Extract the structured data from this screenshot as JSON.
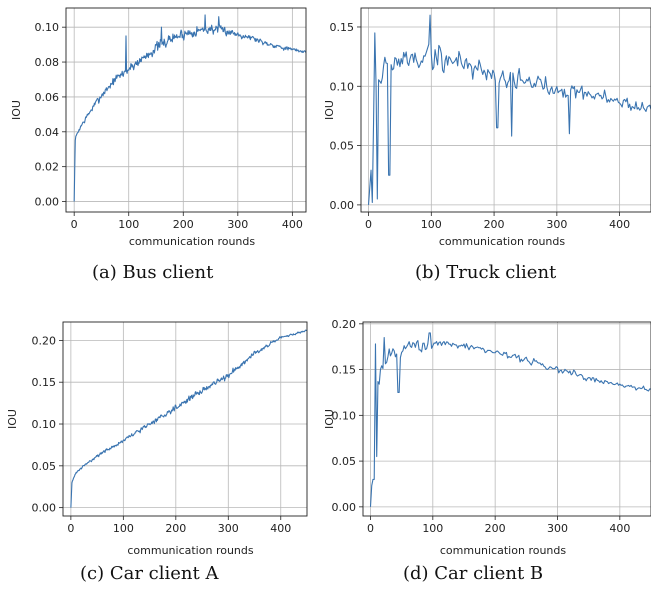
{
  "chart_data": [
    {
      "type": "line",
      "xlabel": "communication rounds",
      "ylabel": "IOU",
      "xlim": [
        -15,
        425
      ],
      "ylim": [
        -0.006,
        0.111
      ],
      "xticks": [
        "0",
        "100",
        "200",
        "300",
        "400"
      ],
      "yticks": [
        "0.00",
        "0.02",
        "0.04",
        "0.06",
        "0.08",
        "0.10"
      ],
      "grid": true,
      "caption": "(a) Bus client",
      "series_color": "#3a74b0",
      "shape": {
        "trend": [
          [
            0,
            0.0
          ],
          [
            2,
            0.036
          ],
          [
            10,
            0.042
          ],
          [
            30,
            0.052
          ],
          [
            50,
            0.061
          ],
          [
            75,
            0.07
          ],
          [
            100,
            0.076
          ],
          [
            125,
            0.082
          ],
          [
            150,
            0.088
          ],
          [
            175,
            0.093
          ],
          [
            200,
            0.096
          ],
          [
            225,
            0.098
          ],
          [
            250,
            0.099
          ],
          [
            275,
            0.098
          ],
          [
            300,
            0.096
          ],
          [
            325,
            0.094
          ],
          [
            350,
            0.091
          ],
          [
            375,
            0.089
          ],
          [
            400,
            0.087
          ],
          [
            425,
            0.086
          ]
        ],
        "noise": [
          [
            0,
            0.002
          ],
          [
            50,
            0.004
          ],
          [
            150,
            0.006
          ],
          [
            250,
            0.005
          ],
          [
            320,
            0.003
          ],
          [
            425,
            0.002
          ]
        ],
        "spikes": [
          [
            95,
            0.095
          ],
          [
            160,
            0.1
          ],
          [
            240,
            0.107
          ],
          [
            265,
            0.106
          ]
        ],
        "step": 1,
        "seed": 7
      }
    },
    {
      "type": "line",
      "xlabel": "communication rounds",
      "ylabel": "IOU",
      "xlim": [
        -12,
        450
      ],
      "ylim": [
        -0.006,
        0.166
      ],
      "xticks": [
        "0",
        "100",
        "200",
        "300",
        "400"
      ],
      "yticks": [
        "0.00",
        "0.05",
        "0.10",
        "0.15"
      ],
      "grid": true,
      "caption": "(b) Truck client",
      "series_color": "#3a74b0",
      "shape": {
        "trend": [
          [
            0,
            0.0
          ],
          [
            5,
            0.045
          ],
          [
            12,
            0.1
          ],
          [
            25,
            0.115
          ],
          [
            60,
            0.123
          ],
          [
            100,
            0.125
          ],
          [
            150,
            0.12
          ],
          [
            200,
            0.11
          ],
          [
            250,
            0.104
          ],
          [
            300,
            0.099
          ],
          [
            350,
            0.094
          ],
          [
            400,
            0.087
          ],
          [
            450,
            0.08
          ]
        ],
        "noise": [
          [
            0,
            0.015
          ],
          [
            30,
            0.025
          ],
          [
            120,
            0.022
          ],
          [
            200,
            0.018
          ],
          [
            300,
            0.014
          ],
          [
            400,
            0.011
          ],
          [
            450,
            0.009
          ]
        ],
        "spikes": [
          [
            6,
            0.002
          ],
          [
            10,
            0.145
          ],
          [
            14,
            0.005
          ],
          [
            33,
            0.025
          ],
          [
            98,
            0.16
          ],
          [
            205,
            0.065
          ],
          [
            228,
            0.058
          ],
          [
            320,
            0.06
          ]
        ],
        "step": 2,
        "seed": 19
      }
    },
    {
      "type": "line",
      "xlabel": "communication rounds",
      "ylabel": "IOU",
      "xlim": [
        -15,
        450
      ],
      "ylim": [
        -0.01,
        0.222
      ],
      "xticks": [
        "0",
        "100",
        "200",
        "300",
        "400"
      ],
      "yticks": [
        "0.00",
        "0.05",
        "0.10",
        "0.15",
        "0.20"
      ],
      "grid": true,
      "caption": "(c) Car client A",
      "series_color": "#3a74b0",
      "shape": {
        "trend": [
          [
            0,
            0.0
          ],
          [
            2,
            0.03
          ],
          [
            10,
            0.042
          ],
          [
            25,
            0.05
          ],
          [
            50,
            0.062
          ],
          [
            100,
            0.08
          ],
          [
            150,
            0.1
          ],
          [
            200,
            0.12
          ],
          [
            250,
            0.14
          ],
          [
            300,
            0.158
          ],
          [
            350,
            0.185
          ],
          [
            400,
            0.203
          ],
          [
            450,
            0.212
          ]
        ],
        "noise": [
          [
            0,
            0.002
          ],
          [
            100,
            0.004
          ],
          [
            200,
            0.006
          ],
          [
            300,
            0.006
          ],
          [
            400,
            0.003
          ],
          [
            450,
            0.002
          ]
        ],
        "spikes": [],
        "step": 1,
        "seed": 31
      }
    },
    {
      "type": "line",
      "xlabel": "communication rounds",
      "ylabel": "IOU",
      "xlim": [
        -12,
        450
      ],
      "ylim": [
        -0.01,
        0.202
      ],
      "xticks": [
        "0",
        "100",
        "200",
        "300",
        "400"
      ],
      "yticks": [
        "0.00",
        "0.05",
        "0.10",
        "0.15",
        "0.20"
      ],
      "grid": true,
      "caption": "(d) Car client B",
      "series_color": "#3a74b0",
      "shape": {
        "trend": [
          [
            0,
            0.0
          ],
          [
            4,
            0.06
          ],
          [
            12,
            0.14
          ],
          [
            30,
            0.168
          ],
          [
            60,
            0.175
          ],
          [
            100,
            0.177
          ],
          [
            150,
            0.176
          ],
          [
            200,
            0.17
          ],
          [
            250,
            0.16
          ],
          [
            300,
            0.15
          ],
          [
            350,
            0.14
          ],
          [
            400,
            0.133
          ],
          [
            450,
            0.128
          ]
        ],
        "noise": [
          [
            0,
            0.02
          ],
          [
            30,
            0.015
          ],
          [
            100,
            0.01
          ],
          [
            200,
            0.008
          ],
          [
            300,
            0.007
          ],
          [
            450,
            0.005
          ]
        ],
        "spikes": [
          [
            5,
            0.03
          ],
          [
            8,
            0.178
          ],
          [
            10,
            0.055
          ],
          [
            22,
            0.185
          ],
          [
            45,
            0.125
          ],
          [
            95,
            0.19
          ]
        ],
        "step": 2,
        "seed": 43
      }
    }
  ]
}
